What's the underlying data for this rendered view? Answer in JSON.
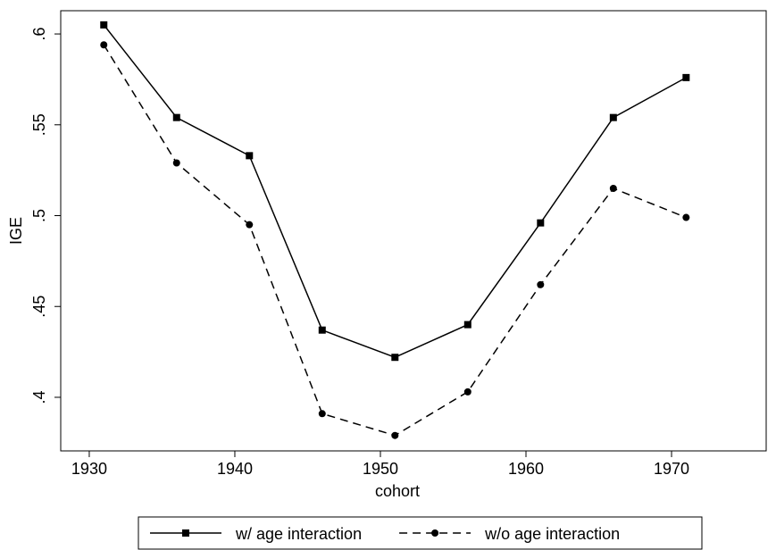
{
  "chart_data": {
    "type": "line",
    "x_label": "cohort",
    "y_label": "IGE",
    "x": [
      1931,
      1936,
      1941,
      1946,
      1951,
      1956,
      1961,
      1966,
      1971
    ],
    "series": [
      {
        "name": "w/ age interaction",
        "color": "#000000",
        "line_style": "solid",
        "marker": "square",
        "values": [
          0.605,
          0.554,
          0.533,
          0.437,
          0.422,
          0.44,
          0.496,
          0.554,
          0.576
        ]
      },
      {
        "name": "w/o age interaction",
        "color": "#000000",
        "line_style": "dashed",
        "marker": "circle",
        "values": [
          0.594,
          0.529,
          0.495,
          0.391,
          0.379,
          0.403,
          0.462,
          0.515,
          0.499
        ]
      }
    ],
    "xlim": [
      1928.04,
      1976.5
    ],
    "ylim": [
      0.3705,
      0.6128
    ],
    "xticks": [
      1930,
      1940,
      1950,
      1960,
      1970
    ],
    "yticks": [
      {
        "value": 0.4,
        "label": ".4"
      },
      {
        "value": 0.45,
        "label": ".45"
      },
      {
        "value": 0.5,
        "label": ".5"
      },
      {
        "value": 0.55,
        "label": ".55"
      },
      {
        "value": 0.6,
        "label": ".6"
      }
    ],
    "grid": false,
    "legend": "bottom"
  }
}
